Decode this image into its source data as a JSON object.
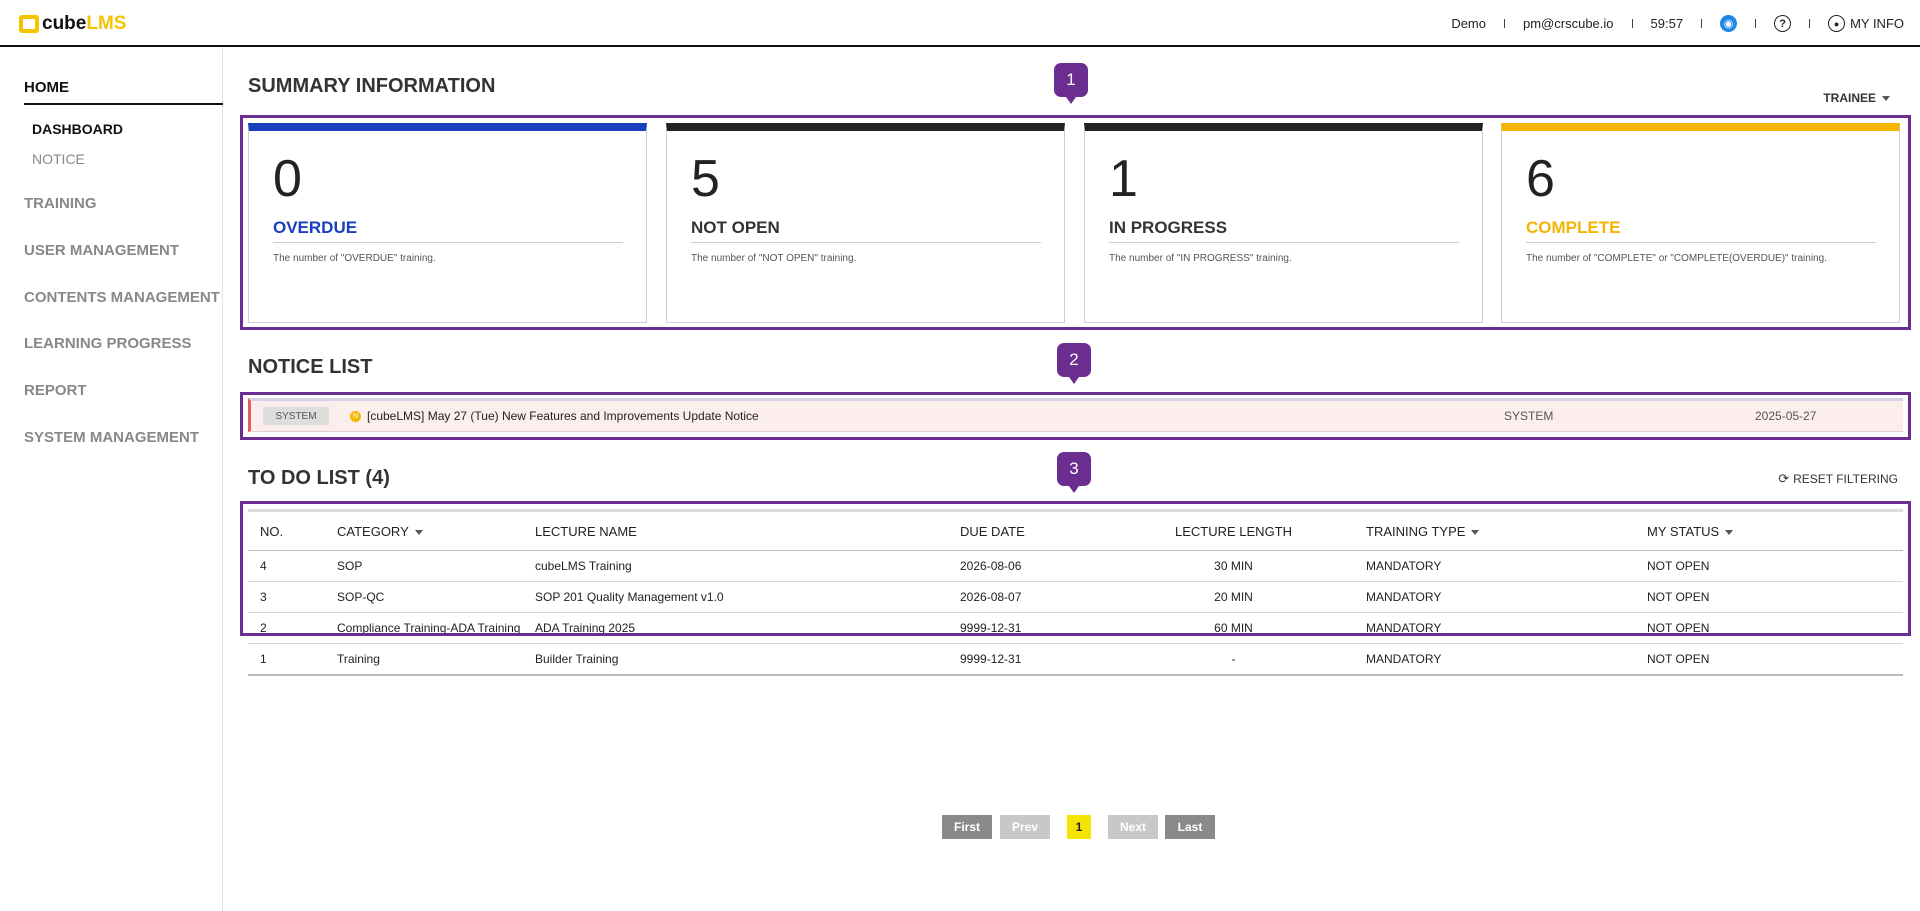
{
  "header": {
    "logo_cube": "cube",
    "logo_lms": "LMS",
    "company": "Demo",
    "email": "pm@crscube.io",
    "timer": "59:57",
    "my_info": "MY INFO"
  },
  "sidebar": {
    "home": "HOME",
    "home_sub": [
      "DASHBOARD",
      "NOTICE"
    ],
    "items": [
      "TRAINING",
      "USER MANAGEMENT",
      "CONTENTS MANAGEMENT",
      "LEARNING PROGRESS",
      "REPORT",
      "SYSTEM MANAGEMENT"
    ]
  },
  "summary": {
    "title": "SUMMARY INFORMATION",
    "role": "TRAINEE",
    "cards": [
      {
        "count": "0",
        "label": "OVERDUE",
        "desc": "The number of \"OVERDUE\" training.",
        "color": "#1a3fbd"
      },
      {
        "count": "5",
        "label": "NOT OPEN",
        "desc": "The number of \"NOT OPEN\" training.",
        "color": "#222222"
      },
      {
        "count": "1",
        "label": "IN PROGRESS",
        "desc": "The number of \"IN PROGRESS\" training.",
        "color": "#222222"
      },
      {
        "count": "6",
        "label": "COMPLETE",
        "desc": "The number of \"COMPLETE\" or \"COMPLETE(OVERDUE)\" training.",
        "color": "#f5b400"
      }
    ]
  },
  "notice": {
    "title": "NOTICE LIST",
    "rows": [
      {
        "badge": "SYSTEM",
        "new_mark": "N",
        "title": "[cubeLMS] May 27 (Tue) New Features and Improvements Update Notice",
        "author": "SYSTEM",
        "date": "2025-05-27"
      }
    ]
  },
  "todo": {
    "title": "TO DO LIST (4)",
    "reset": "RESET FILTERING",
    "columns": [
      "NO.",
      "CATEGORY",
      "LECTURE NAME",
      "DUE DATE",
      "LECTURE LENGTH",
      "TRAINING TYPE",
      "MY STATUS"
    ],
    "rows": [
      [
        "4",
        "SOP",
        "cubeLMS Training",
        "2026-08-06",
        "30 MIN",
        "MANDATORY",
        "NOT OPEN"
      ],
      [
        "3",
        "SOP-QC",
        "SOP 201 Quality Management v1.0",
        "2026-08-07",
        "20 MIN",
        "MANDATORY",
        "NOT OPEN"
      ],
      [
        "2",
        "Compliance Training-ADA Training",
        "ADA Training 2025",
        "9999-12-31",
        "60 MIN",
        "MANDATORY",
        "NOT OPEN"
      ],
      [
        "1",
        "Training",
        "Builder Training",
        "9999-12-31",
        "-",
        "MANDATORY",
        "NOT OPEN"
      ]
    ]
  },
  "pagination": {
    "first": "First",
    "prev": "Prev",
    "current": "1",
    "next": "Next",
    "last": "Last"
  },
  "annotations": [
    "1",
    "2",
    "3"
  ],
  "colors": {
    "accent": "#f5c400",
    "annotation": "#6b2d8f",
    "overdue": "#1a3fbd",
    "complete": "#f5b400"
  }
}
